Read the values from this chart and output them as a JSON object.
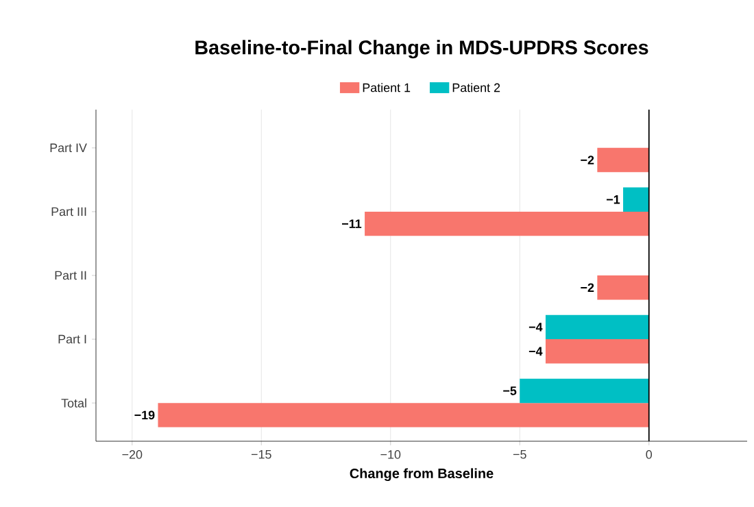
{
  "chart_data": {
    "type": "bar",
    "orientation": "horizontal",
    "title": "Baseline-to-Final Change in MDS-UPDRS Scores",
    "xlabel": "Change from Baseline",
    "categories": [
      "Part IV",
      "Part III",
      "Part II",
      "Part I",
      "Total"
    ],
    "series": [
      {
        "name": "Patient 1",
        "color": "#f8766d",
        "values": [
          -2,
          -11,
          -2,
          -4,
          -19
        ],
        "value_labels": [
          "−2",
          "−11",
          "−2",
          "−4",
          "−19"
        ]
      },
      {
        "name": "Patient 2",
        "color": "#00bfc4",
        "values": [
          null,
          -1,
          null,
          -4,
          -5
        ],
        "value_labels": [
          null,
          "−1",
          null,
          "−4",
          "−5"
        ]
      }
    ],
    "xlim": [
      -21.4,
      3.8
    ],
    "xticks": [
      {
        "value": -20,
        "label": "−20"
      },
      {
        "value": -15,
        "label": "−15"
      },
      {
        "value": -10,
        "label": "−10"
      },
      {
        "value": -5,
        "label": "−5"
      },
      0
    ],
    "grid": "x",
    "legend": "top",
    "ref_lines": [
      {
        "axis": "x",
        "value": 0,
        "color": "#000000"
      }
    ]
  }
}
